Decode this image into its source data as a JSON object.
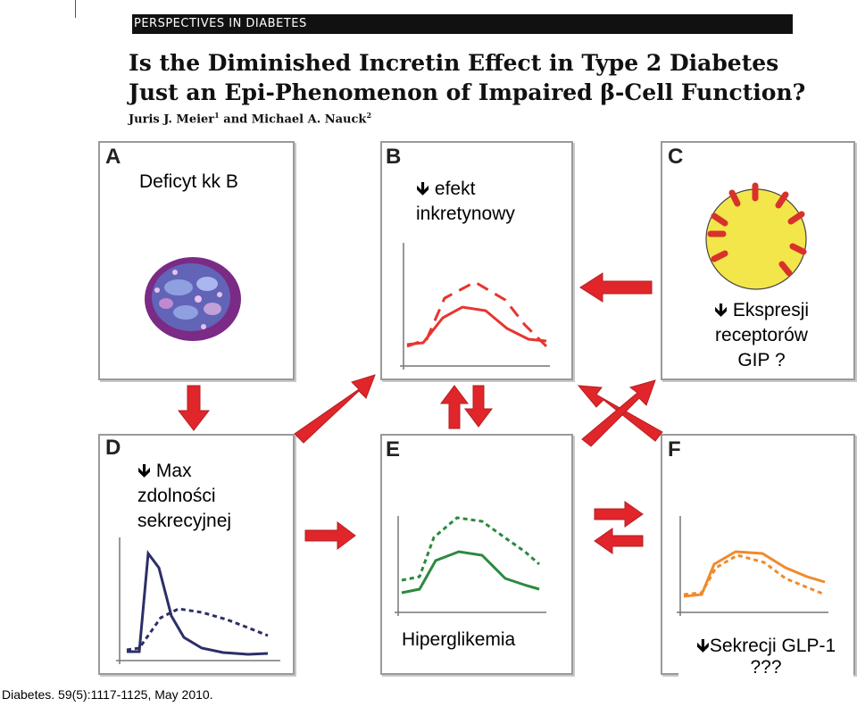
{
  "header": {
    "band": "PERSPECTIVES IN DIABETES",
    "title": "Is the Diminished Incretin Effect in Type 2 Diabetes Just an Epi-Phenomenon of Impaired β-Cell Function?",
    "authors": "Juris J. Meier",
    "authors_sup1": "1",
    "authors_and": "and Michael A. Nauck",
    "authors_sup2": "2"
  },
  "panels": {
    "a": {
      "label": "A",
      "note": "Deficyt kk B"
    },
    "b": {
      "label": "B",
      "note_line1": "efekt",
      "note_line2": "inkretynowy"
    },
    "c": {
      "label": "C",
      "note_line1": "Ekspresji",
      "note_line2": "receptorów",
      "note_line3": "GIP ?"
    },
    "d": {
      "label": "D",
      "note_line1": "Max",
      "note_line2": "zdolności",
      "note_line3": "sekrecyjnej"
    },
    "e": {
      "label": "E",
      "note": "Hiperglikemia"
    },
    "f": {
      "label": "F",
      "note_line1": "Sekrecji GLP-1",
      "note_line2": "???"
    }
  },
  "symbols": {
    "down_arrow": "🡻"
  },
  "colors": {
    "arrow": "#e0262a",
    "b_curve": "#e8342e",
    "d_curve": "#2c2f66",
    "e_curve": "#2b8a3e",
    "f_curve": "#f08a2c",
    "cell": "#f3e64a",
    "islet": "#8b2e8f"
  },
  "citation": "Diabetes. 59(5):1117-1125, May 2010."
}
